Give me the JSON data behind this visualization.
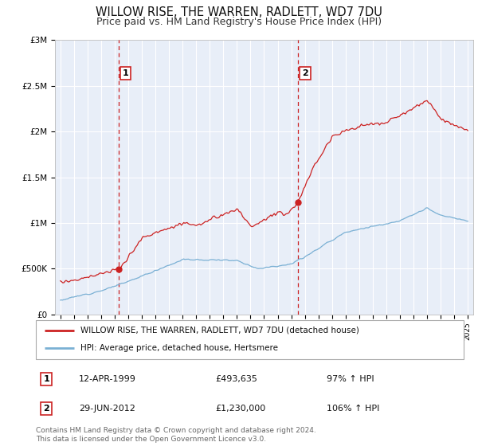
{
  "title": "WILLOW RISE, THE WARREN, RADLETT, WD7 7DU",
  "subtitle": "Price paid vs. HM Land Registry's House Price Index (HPI)",
  "ylim": [
    0,
    3000000
  ],
  "yticks": [
    0,
    500000,
    1000000,
    1500000,
    2000000,
    2500000,
    3000000
  ],
  "ytick_labels": [
    "£0",
    "£500K",
    "£1M",
    "£1.5M",
    "£2M",
    "£2.5M",
    "£3M"
  ],
  "background_color": "#ffffff",
  "plot_bg_color": "#e8eef8",
  "grid_color": "#ffffff",
  "title_fontsize": 10.5,
  "subtitle_fontsize": 9,
  "label1_date": "12-APR-1999",
  "label1_price": "£493,635",
  "label1_hpi": "97% ↑ HPI",
  "label2_date": "29-JUN-2012",
  "label2_price": "£1,230,000",
  "label2_hpi": "106% ↑ HPI",
  "legend_label1": "WILLOW RISE, THE WARREN, RADLETT, WD7 7DU (detached house)",
  "legend_label2": "HPI: Average price, detached house, Hertsmere",
  "footer": "Contains HM Land Registry data © Crown copyright and database right 2024.\nThis data is licensed under the Open Government Licence v3.0.",
  "red_color": "#cc2222",
  "blue_color": "#7ab0d4",
  "marker1_year": 1999.28,
  "marker1_value": 493635,
  "marker2_year": 2012.49,
  "marker2_value": 1230000,
  "vline1_year": 1999.28,
  "vline2_year": 2012.49,
  "xlim_left": 1994.6,
  "xlim_right": 2025.4
}
